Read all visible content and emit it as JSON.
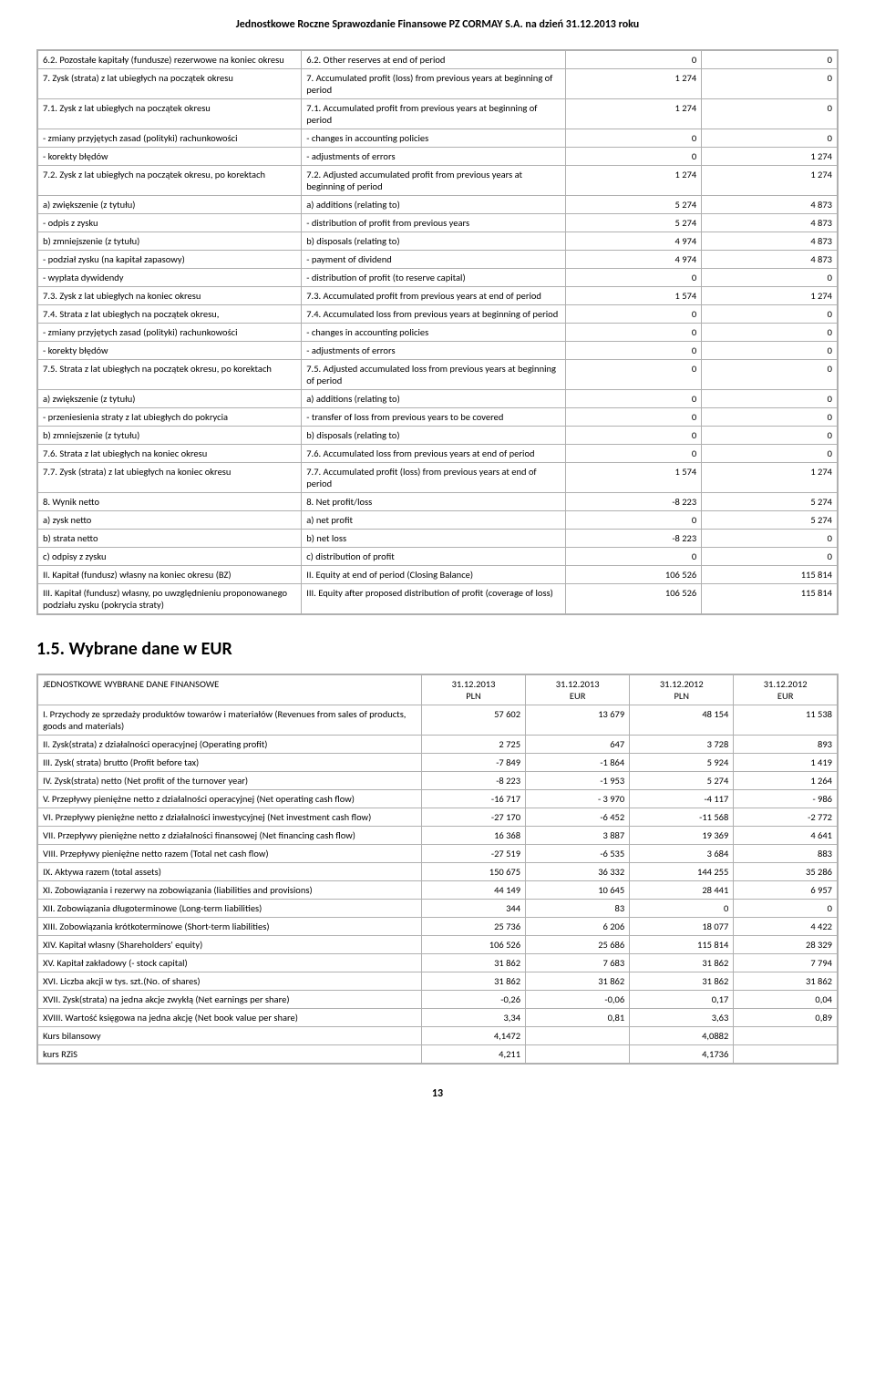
{
  "header_title": "Jednostkowe Roczne Sprawozdanie Finansowe PZ CORMAY S.A. na dzień 31.12.2013 roku",
  "table1": [
    {
      "pl": "6.2. Pozostałe kapitały (fundusze) rezerwowe na koniec okresu",
      "en": "6.2. Other reserves at end of period",
      "v1": "0",
      "v2": "0"
    },
    {
      "pl": "7. Zysk (strata) z lat ubiegłych na początek okresu",
      "en": "7. Accumulated profit (loss) from previous years at beginning of period",
      "v1": "1 274",
      "v2": "0"
    },
    {
      "pl": "7.1. Zysk z lat ubiegłych na początek okresu",
      "en": "7.1. Accumulated profit from previous years at beginning of period",
      "v1": "1 274",
      "v2": "0"
    },
    {
      "pl": "- zmiany przyjętych zasad (polityki) rachunkowości",
      "en": "- changes in accounting policies",
      "v1": "0",
      "v2": "0"
    },
    {
      "pl": "- korekty błędów",
      "en": "- adjustments of errors",
      "v1": "0",
      "v2": "1 274"
    },
    {
      "pl": "7.2. Zysk z lat ubiegłych na początek okresu, po korektach",
      "en": "7.2. Adjusted accumulated profit from previous years at beginning of period",
      "v1": "1 274",
      "v2": "1 274"
    },
    {
      "pl": "a) zwiększenie (z tytułu)",
      "en": "a) additions (relating to)",
      "v1": "5 274",
      "v2": "4 873"
    },
    {
      "pl": "- odpis z zysku",
      "en": "- distribution of profit from previous years",
      "v1": "5 274",
      "v2": "4 873"
    },
    {
      "pl": "b) zmniejszenie (z tytułu)",
      "en": "b) disposals (relating to)",
      "v1": "4 974",
      "v2": "4 873"
    },
    {
      "pl": "- podział zysku (na kapitał zapasowy)",
      "en": "- payment of dividend",
      "v1": "4 974",
      "v2": "4 873"
    },
    {
      "pl": "- wypłata dywidendy",
      "en": "- distribution of profit (to reserve capital)",
      "v1": "0",
      "v2": "0"
    },
    {
      "pl": "7.3. Zysk z lat ubiegłych na koniec okresu",
      "en": "7.3. Accumulated profit from previous years at end of period",
      "v1": "1 574",
      "v2": "1 274"
    },
    {
      "pl": "7.4. Strata z lat ubiegłych na początek okresu,",
      "en": "7.4. Accumulated loss from previous years at beginning of period",
      "v1": "0",
      "v2": "0"
    },
    {
      "pl": "- zmiany przyjętych zasad (polityki) rachunkowości",
      "en": "- changes in accounting policies",
      "v1": "0",
      "v2": "0"
    },
    {
      "pl": "- korekty błędów",
      "en": "- adjustments of errors",
      "v1": "0",
      "v2": "0"
    },
    {
      "pl": "7.5. Strata z lat ubiegłych na początek okresu, po korektach",
      "en": "7.5. Adjusted accumulated loss from previous years at beginning of period",
      "v1": "0",
      "v2": "0"
    },
    {
      "pl": "a) zwiększenie (z tytułu)",
      "en": "a) additions (relating to)",
      "v1": "0",
      "v2": "0"
    },
    {
      "pl": "- przeniesienia straty z lat ubiegłych do pokrycia",
      "en": "- transfer of loss from previous years to be covered",
      "v1": "0",
      "v2": "0"
    },
    {
      "pl": "b) zmniejszenie (z tytułu)",
      "en": "b) disposals (relating to)",
      "v1": "0",
      "v2": "0"
    },
    {
      "pl": "7.6. Strata z lat ubiegłych na koniec okresu",
      "en": "7.6. Accumulated loss from previous years at end of period",
      "v1": "0",
      "v2": "0"
    },
    {
      "pl": "7.7. Zysk (strata) z lat ubiegłych na koniec okresu",
      "en": "7.7. Accumulated profit (loss) from previous years at end of period",
      "v1": "1 574",
      "v2": "1 274"
    },
    {
      "pl": "8. Wynik netto",
      "en": "8. Net profit/loss",
      "v1": "-8 223",
      "v2": "5 274"
    },
    {
      "pl": "a) zysk netto",
      "en": "a) net profit",
      "v1": "0",
      "v2": "5 274"
    },
    {
      "pl": "b) strata netto",
      "en": "b) net loss",
      "v1": "-8 223",
      "v2": "0"
    },
    {
      "pl": "c) odpisy z zysku",
      "en": "c) distribution of profit",
      "v1": "0",
      "v2": "0"
    },
    {
      "pl": "II. Kapitał (fundusz) własny na koniec okresu (BZ)",
      "en": "II. Equity at end of period (Closing Balance)",
      "v1": "106 526",
      "v2": "115 814"
    },
    {
      "pl": "III. Kapitał (fundusz) własny, po uwzględnieniu proponowanego podziału zysku (pokrycia straty)",
      "en": "III. Equity after proposed distribution of profit (coverage of loss)",
      "v1": "106 526",
      "v2": "115 814"
    }
  ],
  "section_title": "1.5. Wybrane dane w EUR",
  "table2": {
    "header_label": "JEDNOSTKOWE  WYBRANE DANE FINANSOWE",
    "h1a": "31.12.2013",
    "h1b": "PLN",
    "h2a": "31.12.2013",
    "h2b": "EUR",
    "h3a": "31.12.2012",
    "h3b": "PLN",
    "h4a": "31.12.2012",
    "h4b": "EUR",
    "rows": [
      {
        "label": "I. Przychody ze sprzedaży produktów towarów i materiałów  (Revenues from sales of products, goods and materials)",
        "c1": "57 602",
        "c2": "13 679",
        "c3": "48 154",
        "c4": "11 538"
      },
      {
        "label": "II. Zysk(strata) z działalności operacyjnej (Operating profit)",
        "c1": "2 725",
        "c2": "647",
        "c3": "3 728",
        "c4": "893"
      },
      {
        "label": "III. Zysk( strata) brutto (Profit before tax)",
        "c1": "-7 849",
        "c2": "-1 864",
        "c3": "5 924",
        "c4": "1 419"
      },
      {
        "label": "IV. Zysk(strata) netto (Net profit of the turnover year)",
        "c1": "-8 223",
        "c2": "-1 953",
        "c3": "5 274",
        "c4": "1 264"
      },
      {
        "label": "V. Przepływy pieniężne netto z działalności operacyjnej (Net operating cash flow)",
        "c1": "-16 717",
        "c2": "- 3 970",
        "c3": "-4 117",
        "c4": "- 986"
      },
      {
        "label": "VI. Przepływy pieniężne netto z działalności inwestycyjnej (Net investment cash flow)",
        "c1": "-27 170",
        "c2": "-6 452",
        "c3": "-11 568",
        "c4": "-2 772"
      },
      {
        "label": "VII. Przepływy pieniężne netto z działalności finansowej (Net financing cash flow)",
        "c1": "16 368",
        "c2": "3 887",
        "c3": "19 369",
        "c4": "4 641"
      },
      {
        "label": "VIII. Przepływy pieniężne netto razem (Total net cash flow)",
        "c1": "-27 519",
        "c2": "-6 535",
        "c3": "3 684",
        "c4": "883"
      },
      {
        "label": "IX. Aktywa razem (total assets)",
        "c1": "150 675",
        "c2": "36 332",
        "c3": "144 255",
        "c4": "35 286"
      },
      {
        "label": "XI. Zobowiązania i rezerwy na zobowiązania (liabilities and provisions)",
        "c1": "44 149",
        "c2": "10 645",
        "c3": "28 441",
        "c4": "6 957"
      },
      {
        "label": "XII. Zobowiązania długoterminowe (Long-term liabilities)",
        "c1": "344",
        "c2": "83",
        "c3": "0",
        "c4": "0"
      },
      {
        "label": "XIII. Zobowiązania krótkoterminowe (Short-term liabilities)",
        "c1": "25 736",
        "c2": "6 206",
        "c3": "18 077",
        "c4": "4 422"
      },
      {
        "label": "XIV. Kapitał własny (Shareholders' equity)",
        "c1": "106 526",
        "c2": "25 686",
        "c3": "115 814",
        "c4": "28 329"
      },
      {
        "label": "XV. Kapitał zakładowy (- stock capital)",
        "c1": "31 862",
        "c2": "7 683",
        "c3": "31 862",
        "c4": "7 794"
      },
      {
        "label": "XVI. Liczba akcji w  tys. szt.(No. of shares)",
        "c1": "31 862",
        "c2": "31 862",
        "c3": "31 862",
        "c4": "31 862"
      },
      {
        "label": "XVII. Zysk(strata) na jedna akcje zwykłą (Net earnings per share)",
        "c1": "-0,26",
        "c2": "-0,06",
        "c3": "0,17",
        "c4": "0,04"
      },
      {
        "label": "XVIII. Wartość księgowa na jedna akcję (Net book value per share)",
        "c1": "3,34",
        "c2": "0,81",
        "c3": "3,63",
        "c4": "0,89"
      },
      {
        "label": "Kurs bilansowy",
        "c1": "4,1472",
        "c2": "",
        "c3": "4,0882",
        "c4": ""
      },
      {
        "label": "kurs RZiS",
        "c1": "4,211",
        "c2": "",
        "c3": "4,1736",
        "c4": ""
      }
    ]
  },
  "page_number": "13"
}
